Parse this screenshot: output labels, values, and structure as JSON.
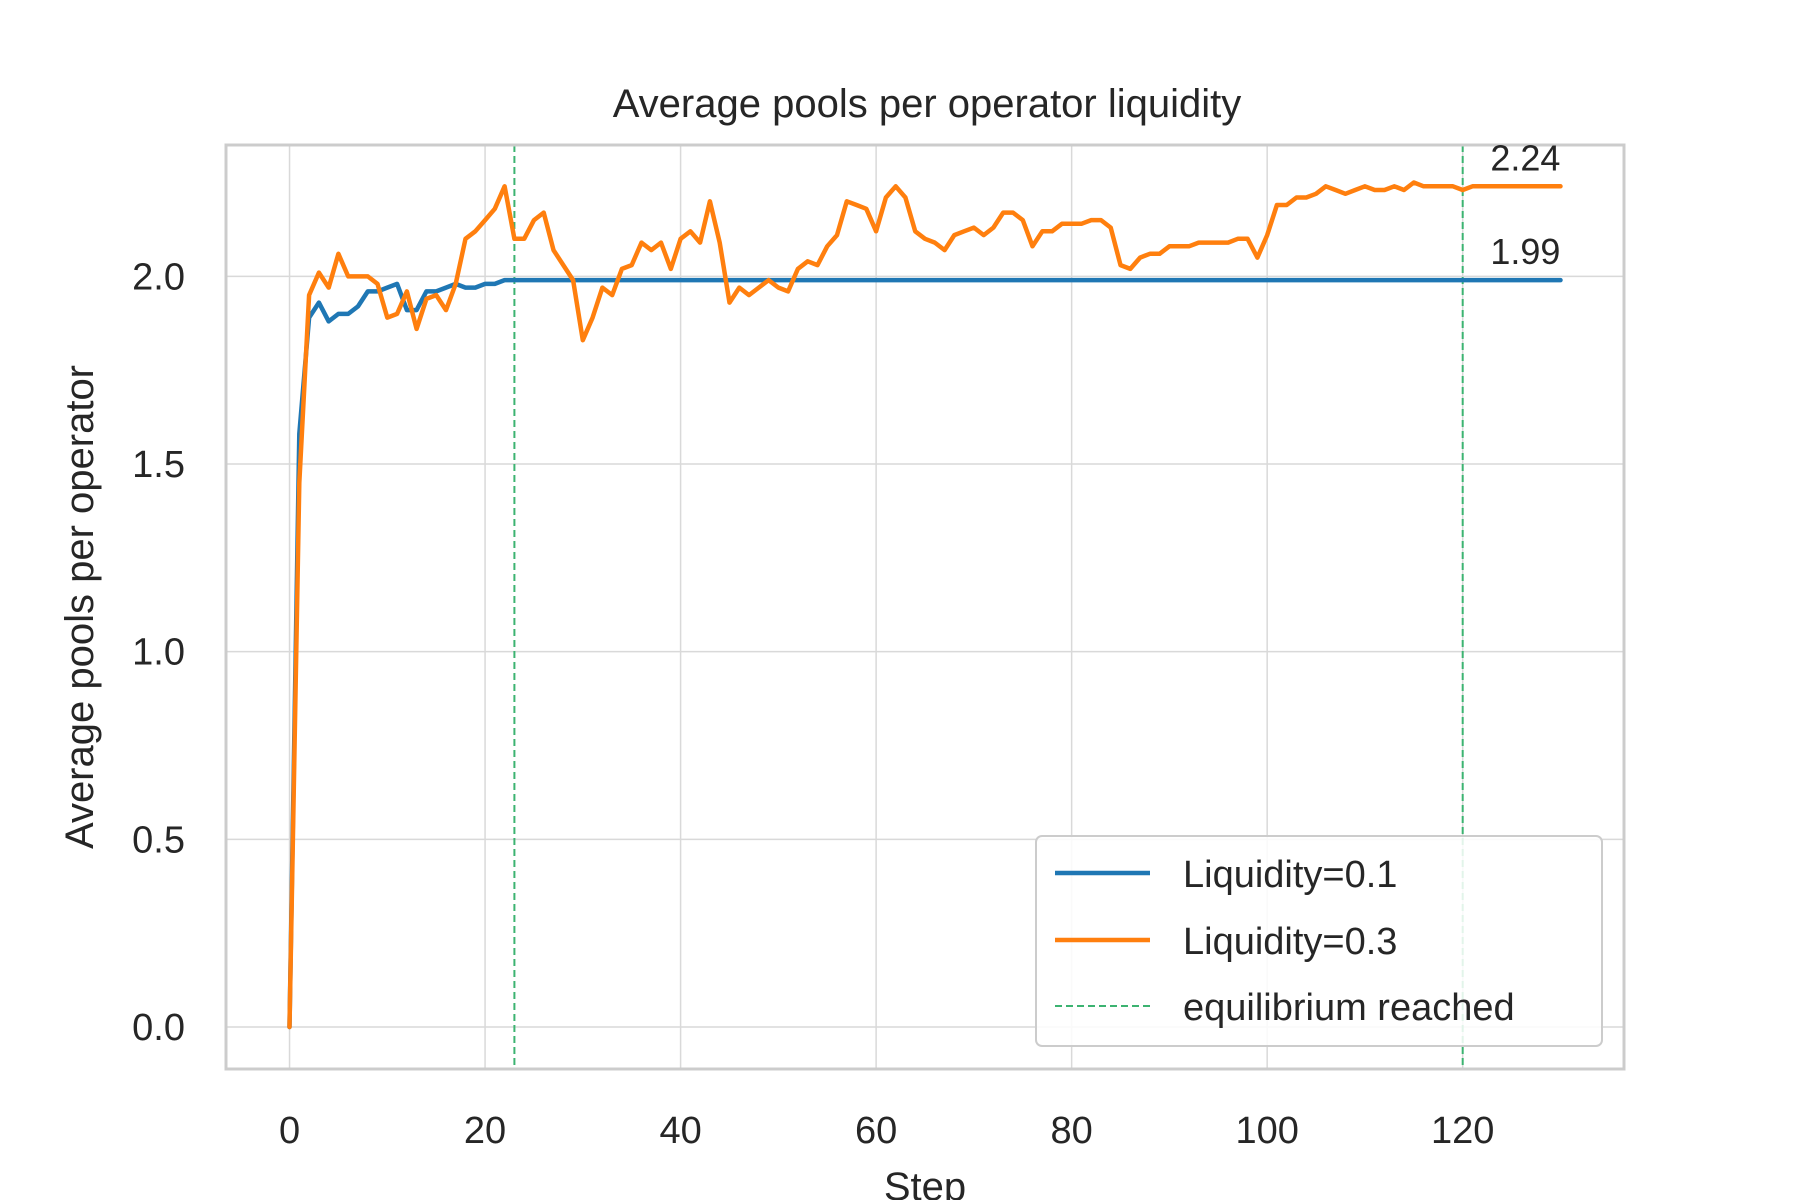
{
  "chart_data": {
    "type": "line",
    "title": "Average pools per operator liquidity",
    "xlabel": "Step",
    "ylabel": "Average pools per operator",
    "xlim": [
      -6.5,
      136.5
    ],
    "ylim": [
      -0.112,
      2.35
    ],
    "xticks": [
      0,
      20,
      40,
      60,
      80,
      100,
      120
    ],
    "yticks": [
      0.0,
      0.5,
      1.0,
      1.5,
      2.0
    ],
    "xtick_labels": [
      "0",
      "20",
      "40",
      "60",
      "80",
      "100",
      "120"
    ],
    "ytick_labels": [
      "0.0",
      "0.5",
      "1.0",
      "1.5",
      "2.0"
    ],
    "grid": true,
    "legend_position": "lower-right",
    "series": [
      {
        "name": "Liquidity=0.1",
        "color": "#1f77b4",
        "x": [
          0,
          1,
          2,
          3,
          4,
          5,
          6,
          7,
          8,
          9,
          10,
          11,
          12,
          13,
          14,
          15,
          16,
          17,
          18,
          19,
          20,
          21,
          22,
          23,
          130
        ],
        "y": [
          0.0,
          1.58,
          1.89,
          1.93,
          1.88,
          1.9,
          1.9,
          1.92,
          1.96,
          1.96,
          1.97,
          1.98,
          1.91,
          1.91,
          1.96,
          1.96,
          1.97,
          1.98,
          1.97,
          1.97,
          1.98,
          1.98,
          1.99,
          1.99,
          1.99
        ]
      },
      {
        "name": "Liquidity=0.3",
        "color": "#ff7f0e",
        "x": [
          0,
          1,
          2,
          3,
          4,
          5,
          6,
          7,
          8,
          9,
          10,
          11,
          12,
          13,
          14,
          15,
          16,
          17,
          18,
          19,
          20,
          21,
          22,
          23,
          24,
          25,
          26,
          27,
          28,
          29,
          30,
          31,
          32,
          33,
          34,
          35,
          36,
          37,
          38,
          39,
          40,
          41,
          42,
          43,
          44,
          45,
          46,
          47,
          48,
          49,
          50,
          51,
          52,
          53,
          54,
          55,
          56,
          57,
          58,
          59,
          60,
          61,
          62,
          63,
          64,
          65,
          66,
          67,
          68,
          69,
          70,
          71,
          72,
          73,
          74,
          75,
          76,
          77,
          78,
          79,
          80,
          81,
          82,
          83,
          84,
          85,
          86,
          87,
          88,
          89,
          90,
          91,
          92,
          93,
          94,
          95,
          96,
          97,
          98,
          99,
          100,
          101,
          102,
          103,
          104,
          105,
          106,
          107,
          108,
          109,
          110,
          111,
          112,
          113,
          114,
          115,
          116,
          117,
          118,
          119,
          120,
          121,
          122,
          123,
          124,
          125,
          126,
          127,
          128,
          129,
          130
        ],
        "y": [
          0.0,
          1.45,
          1.95,
          2.01,
          1.97,
          2.06,
          2.0,
          2.0,
          2.0,
          1.98,
          1.89,
          1.9,
          1.96,
          1.86,
          1.94,
          1.95,
          1.91,
          1.98,
          2.1,
          2.12,
          2.15,
          2.18,
          2.24,
          2.1,
          2.1,
          2.15,
          2.17,
          2.07,
          2.03,
          1.99,
          1.83,
          1.89,
          1.97,
          1.95,
          2.02,
          2.03,
          2.09,
          2.07,
          2.09,
          2.02,
          2.1,
          2.12,
          2.09,
          2.2,
          2.09,
          1.93,
          1.97,
          1.95,
          1.97,
          1.99,
          1.97,
          1.96,
          2.02,
          2.04,
          2.03,
          2.08,
          2.11,
          2.2,
          2.19,
          2.18,
          2.12,
          2.21,
          2.24,
          2.21,
          2.12,
          2.1,
          2.09,
          2.07,
          2.11,
          2.12,
          2.13,
          2.11,
          2.13,
          2.17,
          2.17,
          2.15,
          2.08,
          2.12,
          2.12,
          2.14,
          2.14,
          2.14,
          2.15,
          2.15,
          2.13,
          2.03,
          2.02,
          2.05,
          2.06,
          2.06,
          2.08,
          2.08,
          2.08,
          2.09,
          2.09,
          2.09,
          2.09,
          2.1,
          2.1,
          2.05,
          2.11,
          2.19,
          2.19,
          2.21,
          2.21,
          2.22,
          2.24,
          2.23,
          2.22,
          2.23,
          2.24,
          2.23,
          2.23,
          2.24,
          2.23,
          2.25,
          2.24,
          2.24,
          2.24,
          2.24,
          2.23,
          2.24,
          2.24,
          2.24,
          2.24,
          2.24,
          2.24,
          2.24,
          2.24,
          2.24,
          2.24
        ]
      }
    ],
    "equilibrium": {
      "name": "equilibrium reached",
      "color": "#3cb371",
      "x": [
        23,
        120
      ]
    },
    "annotations": [
      {
        "text": "2.24",
        "x": 130,
        "y": 2.24
      },
      {
        "text": "1.99",
        "x": 130,
        "y": 1.99
      }
    ]
  }
}
